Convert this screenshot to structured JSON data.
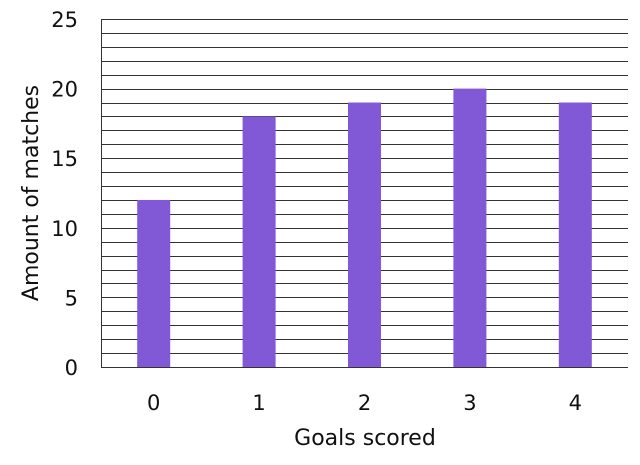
{
  "chart_data": {
    "type": "bar",
    "categories": [
      "0",
      "1",
      "2",
      "3",
      "4"
    ],
    "values": [
      12,
      18,
      19,
      20,
      19
    ],
    "xlabel": "Goals scored",
    "ylabel": "Amount of matches",
    "ylim": [
      0,
      25
    ],
    "y_ticks": [
      "0",
      "5",
      "10",
      "15",
      "20",
      "25"
    ],
    "grid": true,
    "bar_color": "#8158d6",
    "grid_color": "#333333"
  }
}
